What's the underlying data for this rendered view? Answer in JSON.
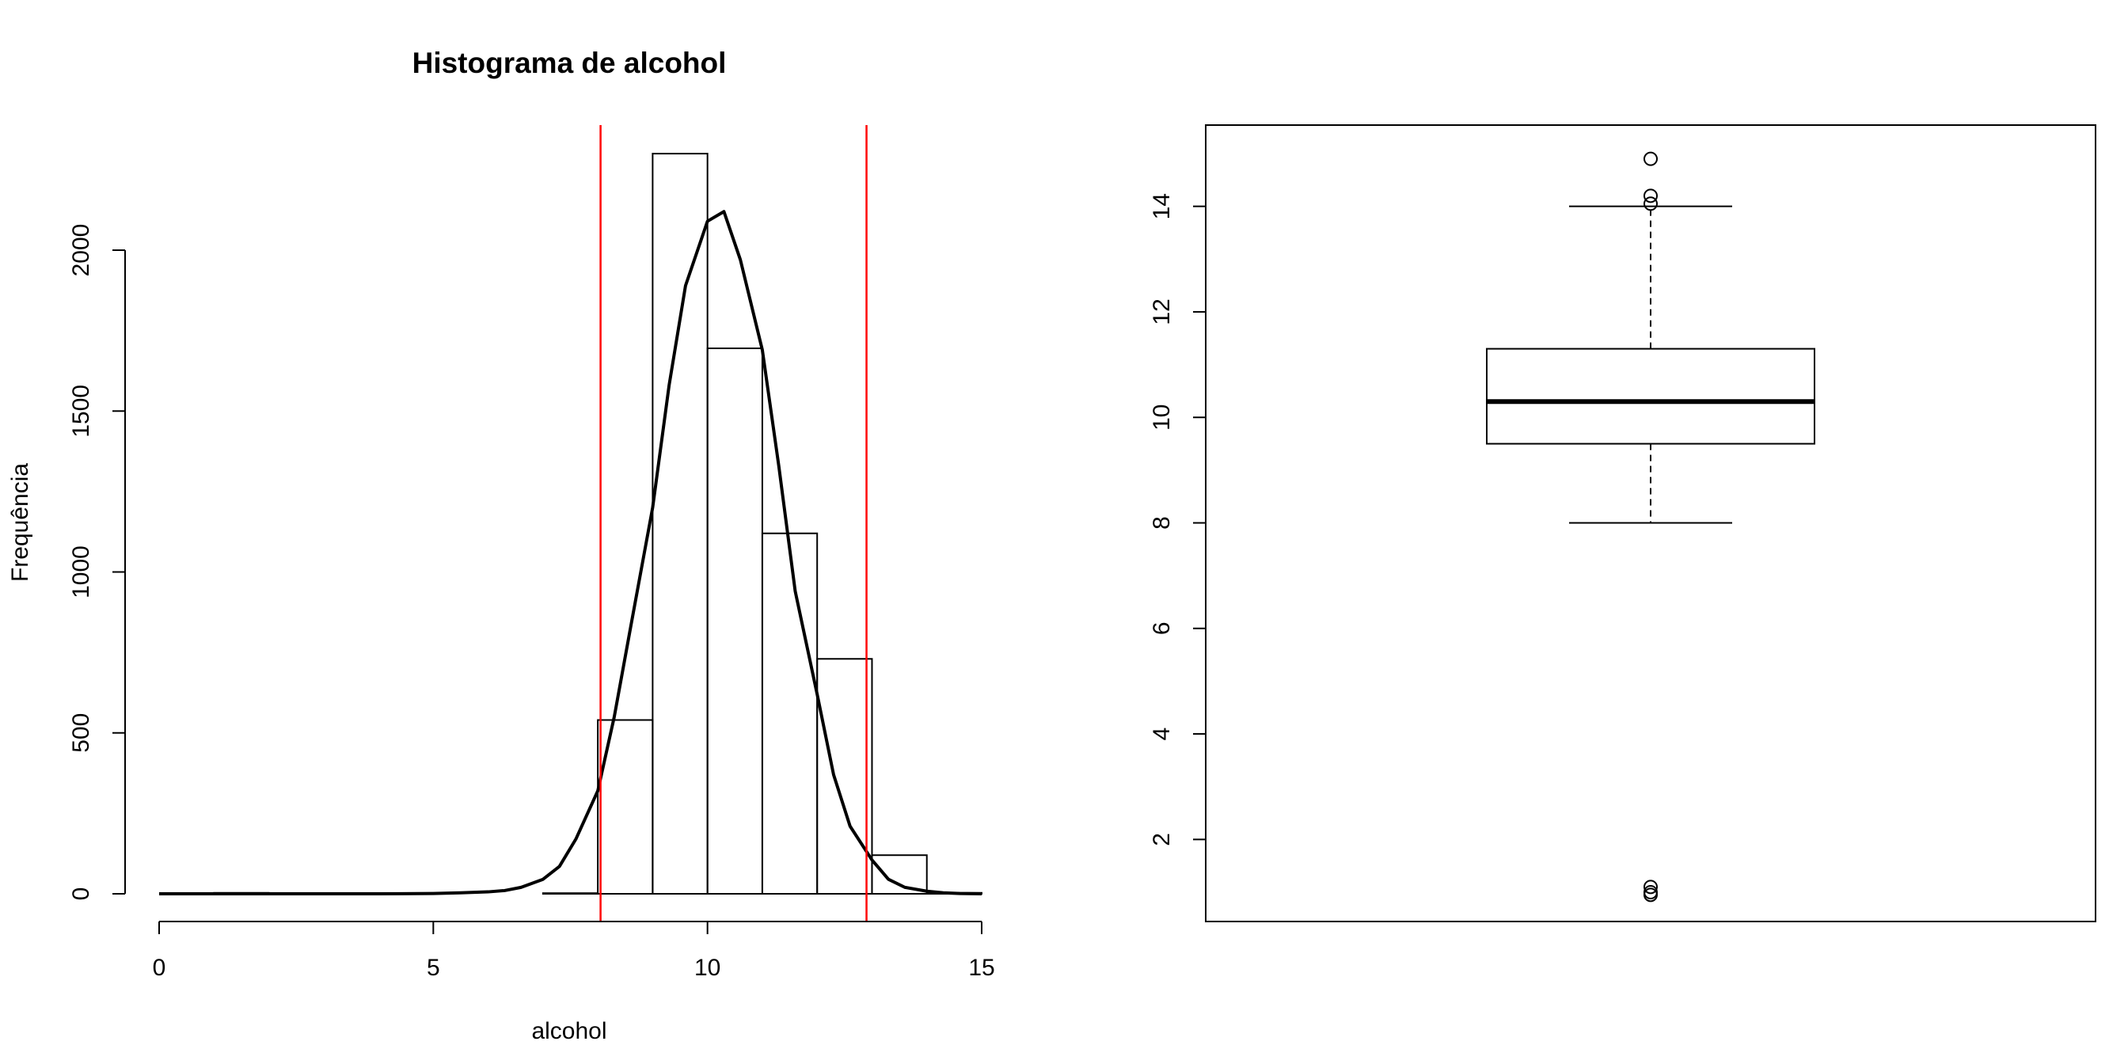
{
  "chart_data": [
    {
      "type": "bar",
      "title": "Histograma de  alcohol",
      "xlabel": "alcohol",
      "ylabel": "Frequência",
      "xlim": [
        0,
        15
      ],
      "ylim": [
        0,
        2300
      ],
      "x_ticks": [
        "0",
        "5",
        "10",
        "15"
      ],
      "y_ticks": [
        "0",
        "500",
        "1000",
        "1500",
        "2000"
      ],
      "bins": [
        {
          "x0": 1,
          "x1": 2,
          "count": 3
        },
        {
          "x0": 2,
          "x1": 3,
          "count": 0
        },
        {
          "x0": 3,
          "x1": 4,
          "count": 0
        },
        {
          "x0": 4,
          "x1": 5,
          "count": 0
        },
        {
          "x0": 5,
          "x1": 6,
          "count": 0
        },
        {
          "x0": 6,
          "x1": 7,
          "count": 0
        },
        {
          "x0": 7,
          "x1": 8,
          "count": 2
        },
        {
          "x0": 8,
          "x1": 9,
          "count": 540
        },
        {
          "x0": 9,
          "x1": 10,
          "count": 2300
        },
        {
          "x0": 10,
          "x1": 11,
          "count": 1695
        },
        {
          "x0": 11,
          "x1": 12,
          "count": 1120
        },
        {
          "x0": 12,
          "x1": 13,
          "count": 730
        },
        {
          "x0": 13,
          "x1": 14,
          "count": 120
        },
        {
          "x0": 14,
          "x1": 15,
          "count": 3
        }
      ],
      "density_curve": {
        "x": [
          0,
          1,
          2,
          3,
          4,
          5,
          5.5,
          6,
          6.3,
          6.6,
          7,
          7.3,
          7.6,
          8,
          8.3,
          8.6,
          9,
          9.3,
          9.6,
          10,
          10.3,
          10.6,
          11,
          11.3,
          11.6,
          12,
          12.3,
          12.6,
          13,
          13.3,
          13.6,
          14,
          14.3,
          14.6,
          15
        ],
        "y": [
          0,
          0,
          0,
          0,
          0,
          1,
          3,
          6,
          10,
          20,
          45,
          85,
          170,
          320,
          550,
          830,
          1200,
          1580,
          1890,
          2090,
          2120,
          1970,
          1690,
          1330,
          940,
          620,
          370,
          210,
          105,
          45,
          20,
          8,
          3,
          1,
          0
        ]
      },
      "reference_lines": [
        {
          "x": 8.05,
          "color": "#ff0000"
        },
        {
          "x": 12.9,
          "color": "#ff0000"
        }
      ]
    },
    {
      "type": "box",
      "ylim": [
        1,
        15
      ],
      "y_ticks": [
        "2",
        "4",
        "6",
        "8",
        "10",
        "12",
        "14"
      ],
      "box": {
        "whisker_low": 8.0,
        "q1": 9.5,
        "median": 10.3,
        "q3": 11.3,
        "whisker_high": 14.0
      },
      "outliers": [
        14.9,
        14.2,
        14.05,
        1.1,
        1.0,
        0.95
      ]
    }
  ]
}
